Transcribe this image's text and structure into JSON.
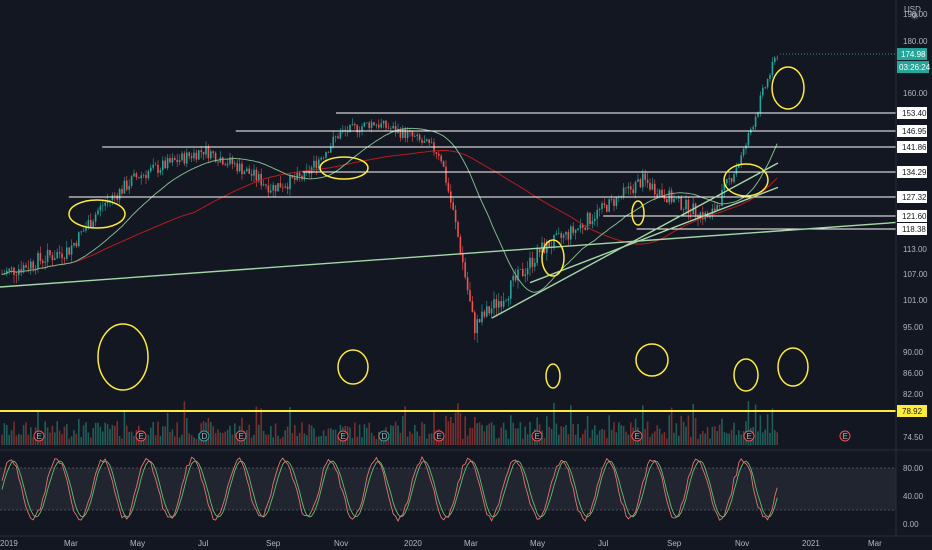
{
  "currency": "USD",
  "price_axis_ticks": [
    "190.00",
    "180.00",
    "160.00",
    "153.40",
    "146.95",
    "141.86",
    "134.29",
    "127.32",
    "121.60",
    "118.38",
    "113.00",
    "107.00",
    "101.00",
    "95.00",
    "90.00",
    "86.00",
    "82.00",
    "78.92",
    "74.50"
  ],
  "price_axis_labels": {
    "visible": [
      "190.00",
      "180.00",
      "160.00",
      "113.00",
      "107.00",
      "101.00",
      "95.00",
      "90.00",
      "86.00",
      "82.00",
      "74.50"
    ]
  },
  "current_price": "174.98",
  "countdown": "03:26:24",
  "horizontal_levels": [
    {
      "label": "153.40",
      "value": 153.4,
      "from": "2019-11"
    },
    {
      "label": "146.95",
      "value": 146.95,
      "from": "2019-08"
    },
    {
      "label": "141.86",
      "value": 141.86,
      "from": "2019-04"
    },
    {
      "label": "134.29",
      "value": 134.29,
      "from": "2019-10"
    },
    {
      "label": "127.32",
      "value": 127.32,
      "from": "2019-03"
    },
    {
      "label": "121.60",
      "value": 121.6,
      "from": "2020-07"
    },
    {
      "label": "118.38",
      "value": 118.38,
      "from": "2020-08"
    }
  ],
  "yellow_level": {
    "label": "78.92",
    "value": 78.92
  },
  "oscillator_ticks": [
    "80.00",
    "40.00",
    "0.00"
  ],
  "time_axis": [
    "2019",
    "Mar",
    "May",
    "Jul",
    "Sep",
    "Nov",
    "2020",
    "Mar",
    "May",
    "Jul",
    "Sep",
    "Nov",
    "2021",
    "Mar"
  ],
  "earnings_markers": [
    "E",
    "E",
    "D",
    "E",
    "E",
    "D",
    "E",
    "E",
    "E",
    "E",
    "E"
  ],
  "chart_data": {
    "type": "line",
    "description_free": true,
    "x": [
      "2019-01",
      "2019-02",
      "2019-03",
      "2019-04",
      "2019-05",
      "2019-06",
      "2019-07",
      "2019-08",
      "2019-09",
      "2019-10",
      "2019-11",
      "2019-12",
      "2020-01",
      "2020-02",
      "2020-03",
      "2020-04",
      "2020-05",
      "2020-06",
      "2020-07",
      "2020-08",
      "2020-09",
      "2020-10",
      "2020-11",
      "2020-12"
    ],
    "series": [
      {
        "values": [
          107,
          110,
          113,
          125,
          133,
          137,
          141,
          136,
          130,
          133,
          146,
          150,
          146,
          140,
          95,
          103,
          113,
          118,
          125,
          132,
          126,
          121,
          140,
          175
        ]
      }
    ],
    "ylim": [
      74.5,
      190
    ],
    "xlim": [
      "2019-01",
      "2021-04"
    ]
  },
  "colors": {
    "background": "#131722",
    "up": "#26a69a",
    "down": "#ef5350",
    "level_line": "#ffffff",
    "yellow": "#ffeb3b",
    "ma_red": "#b71c1c",
    "ma_green": "#7fb58a",
    "trendline": "#a5d6a7",
    "oscillator_band": "#2a2e39",
    "stoch_k": "#e57373",
    "stoch_d": "#66bb6a"
  }
}
